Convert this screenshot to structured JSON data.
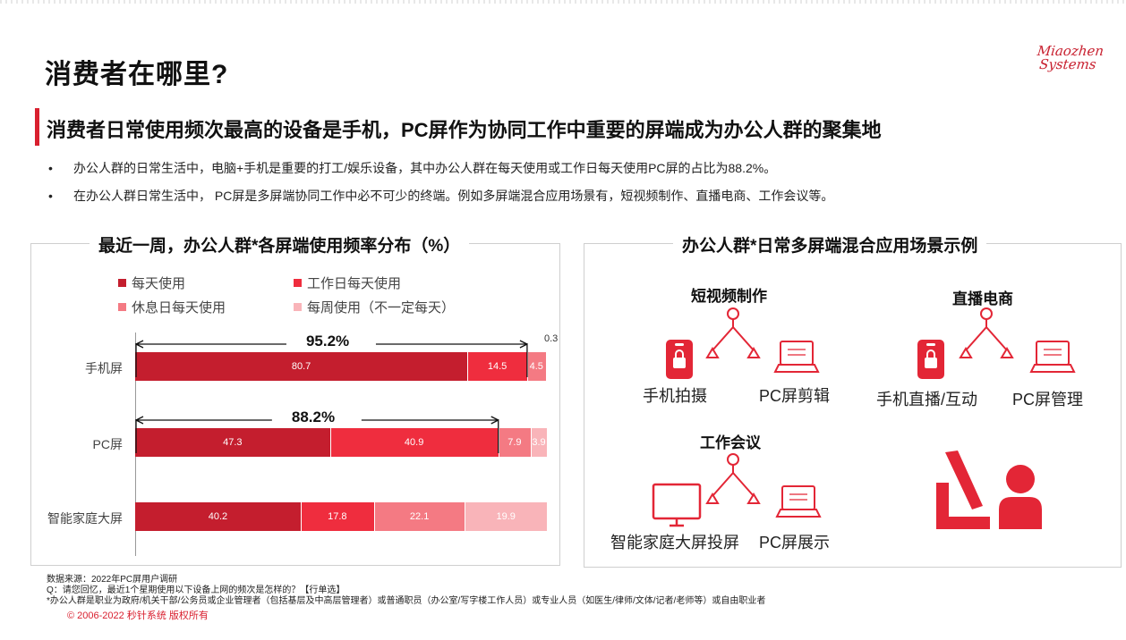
{
  "header": {
    "title": "消费者在哪里?",
    "logo_line1": "Miaozhen",
    "logo_line2": "Systems",
    "subtitle": "消费者日常使用频次最高的设备是手机，PC屏作为协同工作中重要的屏端成为办公人群的聚集地"
  },
  "bullets": [
    "•",
    "办公人群的日常生活中，电脑+手机是重要的打工/娱乐设备，其中办公人群在每天使用或工作日每天使用PC屏的占比为88.2%。",
    "在办公人群日常生活中， PC屏是多屏端协同工作中必不可少的终端。例如多屏端混合应用场景有，短视频制作、直播电商、工作会议等。"
  ],
  "left_panel": {
    "title": "最近一周，办公人群*各屏端使用频率分布（%）"
  },
  "chart_data": {
    "type": "bar",
    "orientation": "horizontal",
    "stacked": true,
    "title": "最近一周，办公人群*各屏端使用频率分布（%）",
    "categories": [
      "手机屏",
      "PC屏",
      "智能家庭大屏"
    ],
    "series": [
      {
        "name": "每天使用",
        "values": [
          80.7,
          47.3,
          40.2
        ],
        "color": "#c41e2e"
      },
      {
        "name": "工作日每天使用",
        "values": [
          14.5,
          40.9,
          17.8
        ],
        "color": "#ef2d3e"
      },
      {
        "name": "休息日每天使用",
        "values": [
          4.5,
          7.9,
          22.1
        ],
        "color": "#f47a83"
      },
      {
        "name": "每周使用（不一定每天）",
        "values": [
          0.3,
          3.9,
          19.9
        ],
        "color": "#f9b4b9"
      }
    ],
    "data_labels": [
      [
        "80.7",
        "14.5",
        "4.5",
        "0.3"
      ],
      [
        "47.3",
        "40.9",
        "7.9",
        "3.9"
      ],
      [
        "40.2",
        "17.8",
        "22.1",
        "19.9"
      ]
    ],
    "annotations": [
      {
        "category": "手机屏",
        "text": "95.2%",
        "value": 95.2
      },
      {
        "category": "PC屏",
        "text": "88.2%",
        "value": 88.2
      }
    ],
    "xlim": [
      0,
      100
    ],
    "legend_position": "top",
    "grid": false
  },
  "right_panel": {
    "title": "办公人群*日常多屏端混合应用场景示例",
    "scenes": [
      {
        "title": "短视频制作",
        "left": "手机拍摄",
        "right": "PC屏剪辑"
      },
      {
        "title": "直播电商",
        "left": "手机直播/互动",
        "right": "PC屏管理"
      },
      {
        "title": "工作会议",
        "left": "智能家庭大屏投屏",
        "right": "PC屏展示"
      }
    ]
  },
  "footnotes": [
    "数据来源：2022年PC屏用户调研",
    "Q：请您回忆，最近1个星期使用以下设备上网的频次是怎样的？【行单选】",
    "*办公人群是职业为政府/机关干部/公务员或企业管理者（包括基层及中高层管理者）或普通职员（办公室/写字楼工作人员）或专业人员（如医生/律师/文体/记者/老师等）或自由职业者"
  ],
  "copyright": "© 2006-2022 秒针系统 版权所有",
  "colors": {
    "brand": "#d9202f"
  }
}
